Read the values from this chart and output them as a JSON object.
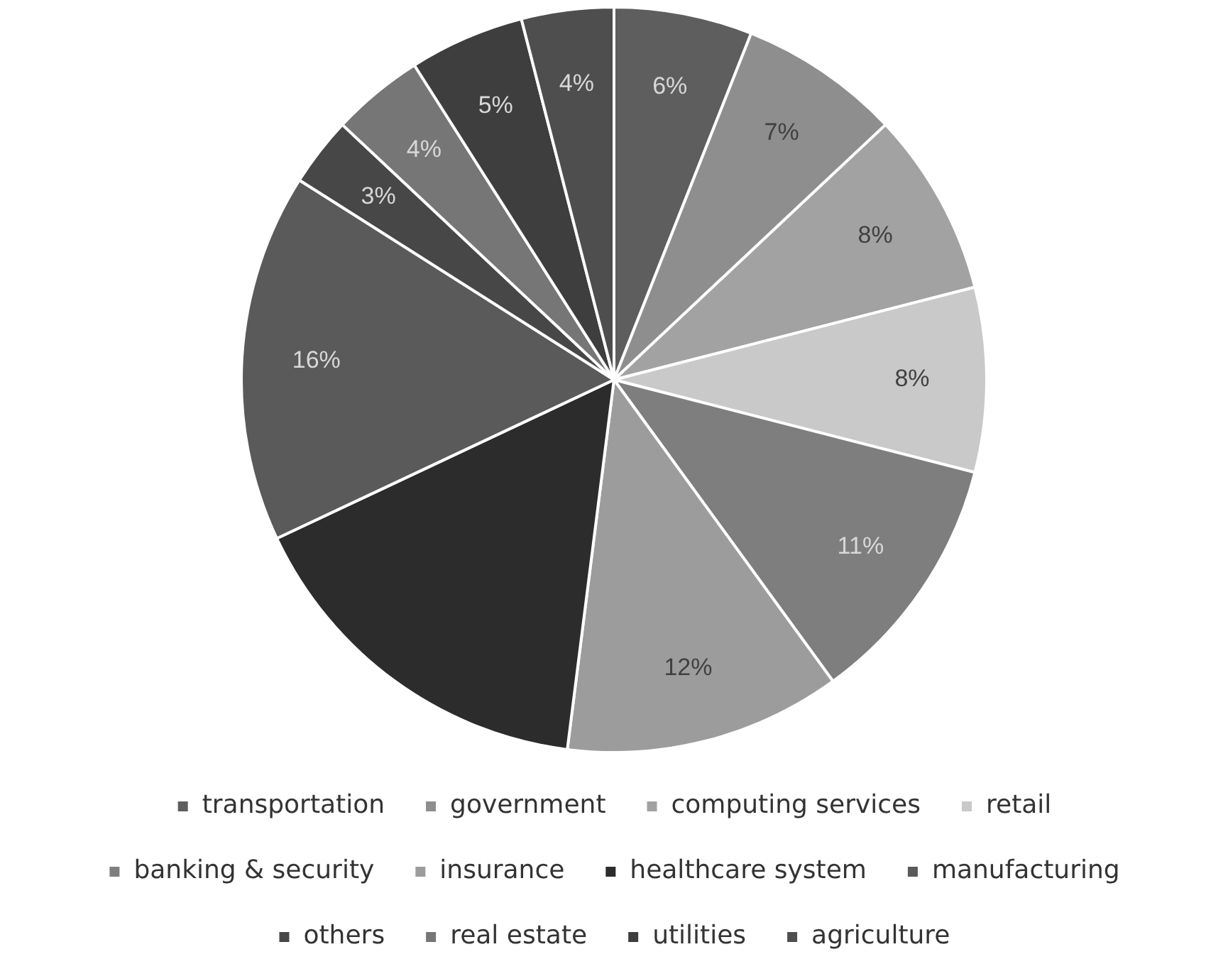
{
  "chart_data": {
    "type": "pie",
    "categories": [
      "transportation",
      "government",
      "computing services",
      "retail",
      "banking & security",
      "insurance",
      "healthcare system",
      "manufacturing",
      "others",
      "real estate",
      "utilities",
      "agriculture"
    ],
    "values": [
      6,
      7,
      8,
      8,
      11,
      12,
      16,
      16,
      3,
      4,
      5,
      4
    ],
    "colors": [
      "#5e5e5e",
      "#8e8e8e",
      "#a2a2a2",
      "#c9c9c9",
      "#7e7e7e",
      "#9c9c9c",
      "#2c2c2c",
      "#5a5a5a",
      "#474747",
      "#767676",
      "#3e3e3e",
      "#4e4e4e"
    ],
    "value_labels": [
      "6%",
      "7%",
      "8%",
      "8%",
      "11%",
      "12%",
      null,
      "16%",
      "3%",
      "4%",
      "5%",
      "4%"
    ],
    "legend": "bottom"
  }
}
